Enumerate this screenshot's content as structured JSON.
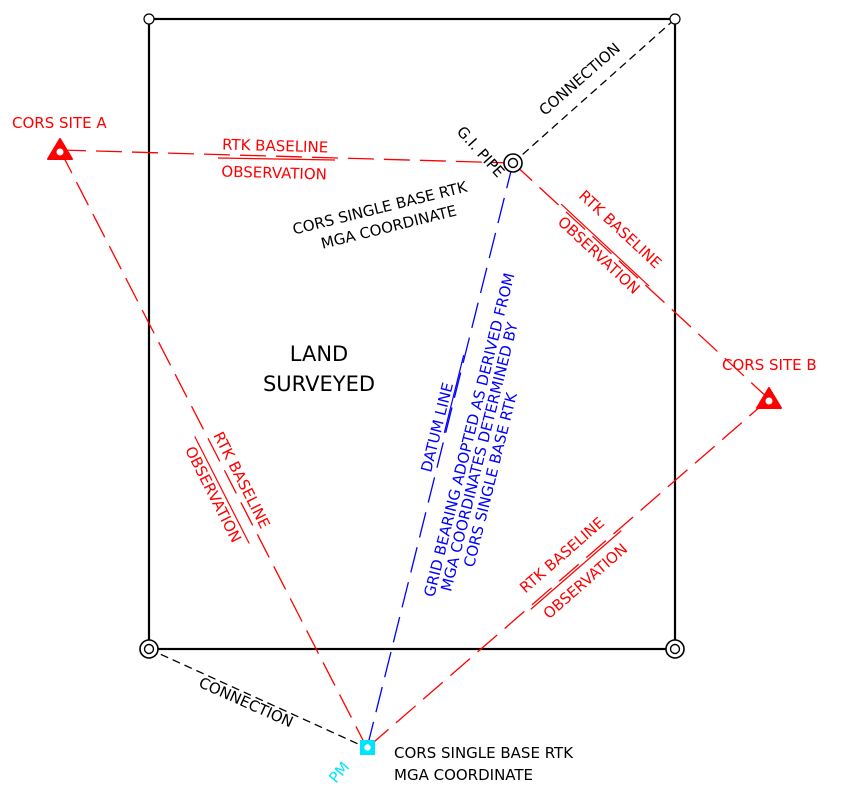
{
  "labels": {
    "cors_a": "CORS SITE A",
    "cors_b": "CORS SITE B",
    "land_line1": "LAND",
    "land_line2": "SURVEYED",
    "gi_pipe": "G.I. PIPE",
    "connection": "CONNECTION",
    "rtk_baseline": "RTK BASELINE",
    "observation": "OBSERVATION",
    "cors_single_base": "CORS SINGLE BASE RTK",
    "mga_coordinate": "MGA COORDINATE",
    "datum_line": "DATUM LINE",
    "grid_line1": "GRID BEARING ADOPTED AS DERIVED FROM",
    "grid_line2": "MGA COORDINATES DETERMINED BY",
    "grid_line3": "CORS SINGLE BASE RTK",
    "pm": "PM"
  },
  "colors": {
    "boundary": "#000000",
    "rtk": "#ff0000",
    "datum": "#0000ff",
    "pm_marker": "#00e5ff"
  }
}
